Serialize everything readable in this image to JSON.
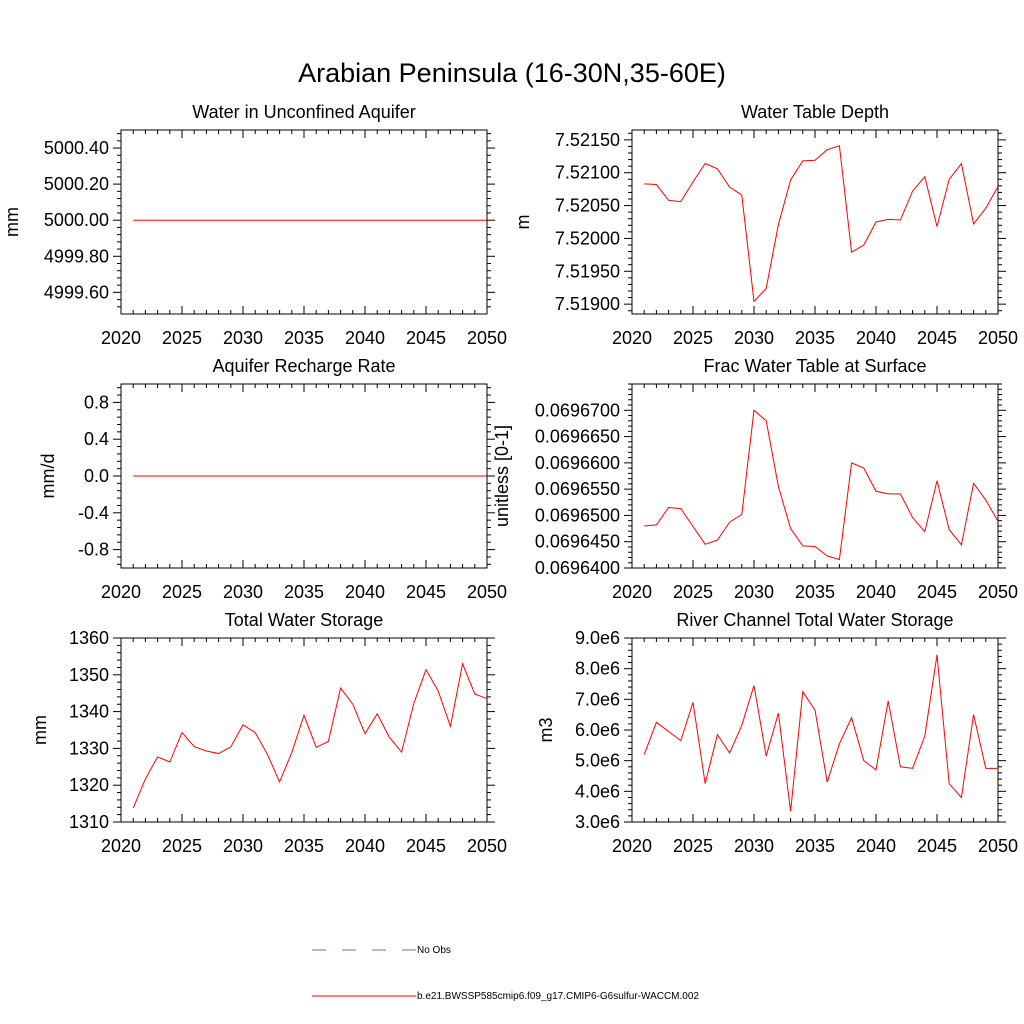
{
  "page": {
    "title": "Arabian Peninsula (16-30N,35-60E)"
  },
  "legend": {
    "entries": [
      {
        "label": "No Obs",
        "color": "#6b6bb5",
        "style": "dashed"
      },
      {
        "label": "b.e21.BWSSP585cmip6.f09_g17.CMIP6-G6sulfur-WACCM.002",
        "color": "#ff0000",
        "style": "solid"
      }
    ]
  },
  "chart_data": [
    {
      "type": "line",
      "title": "Water in Unconfined Aquifer",
      "ylabel": "mm",
      "xlim": [
        2020,
        2050
      ],
      "ylim": [
        4999.48,
        5000.5
      ],
      "xticks": [
        2020,
        2025,
        2030,
        2035,
        2040,
        2045,
        2050
      ],
      "yticks": [
        4999.6,
        4999.8,
        5000.0,
        5000.2,
        5000.4
      ],
      "ytick_labels": [
        "4999.60",
        "4999.80",
        "5000.00",
        "5000.20",
        "5000.40"
      ],
      "series": [
        {
          "color": "#ff0000",
          "x": [
            2021,
            2022,
            2023,
            2024,
            2025,
            2026,
            2027,
            2028,
            2029,
            2030,
            2031,
            2032,
            2033,
            2034,
            2035,
            2036,
            2037,
            2038,
            2039,
            2040,
            2041,
            2042,
            2043,
            2044,
            2045,
            2046,
            2047,
            2048,
            2049,
            2050
          ],
          "y": [
            5000,
            5000,
            5000,
            5000,
            5000,
            5000,
            5000,
            5000,
            5000,
            5000,
            5000,
            5000,
            5000,
            5000,
            5000,
            5000,
            5000,
            5000,
            5000,
            5000,
            5000,
            5000,
            5000,
            5000,
            5000,
            5000,
            5000,
            5000,
            5000,
            5000
          ]
        }
      ]
    },
    {
      "type": "line",
      "title": "Water Table Depth",
      "ylabel": "m",
      "xlim": [
        2020,
        2050
      ],
      "ylim": [
        7.51885,
        7.52165
      ],
      "xticks": [
        2020,
        2025,
        2030,
        2035,
        2040,
        2045,
        2050
      ],
      "yticks": [
        7.519,
        7.5195,
        7.52,
        7.5205,
        7.521,
        7.5215
      ],
      "ytick_labels": [
        "7.51900",
        "7.51950",
        "7.52000",
        "7.52050",
        "7.52100",
        "7.52150"
      ],
      "series": [
        {
          "color": "#ff0000",
          "x": [
            2021,
            2022,
            2023,
            2024,
            2025,
            2026,
            2027,
            2028,
            2029,
            2030,
            2031,
            2032,
            2033,
            2034,
            2035,
            2036,
            2037,
            2038,
            2039,
            2040,
            2041,
            2042,
            2043,
            2044,
            2045,
            2046,
            2047,
            2048,
            2049,
            2050
          ],
          "y": [
            7.52083,
            7.52082,
            7.52058,
            7.52056,
            7.52086,
            7.52114,
            7.52106,
            7.52078,
            7.52066,
            7.51904,
            7.51924,
            7.52021,
            7.52089,
            7.52118,
            7.52119,
            7.52135,
            7.52141,
            7.51979,
            7.5199,
            7.52025,
            7.52029,
            7.52028,
            7.52072,
            7.52094,
            7.52018,
            7.5209,
            7.52114,
            7.52022,
            7.52046,
            7.52079
          ]
        }
      ]
    },
    {
      "type": "line",
      "title": "Aquifer Recharge Rate",
      "ylabel": "mm/d",
      "xlim": [
        2020,
        2050
      ],
      "ylim": [
        -1.0,
        1.0
      ],
      "xticks": [
        2020,
        2025,
        2030,
        2035,
        2040,
        2045,
        2050
      ],
      "yticks": [
        -0.8,
        -0.4,
        0.0,
        0.4,
        0.8
      ],
      "ytick_labels": [
        "-0.8",
        "-0.4",
        "0.0",
        "0.4",
        "0.8"
      ],
      "series": [
        {
          "color": "#ff0000",
          "x": [
            2021,
            2022,
            2023,
            2024,
            2025,
            2026,
            2027,
            2028,
            2029,
            2030,
            2031,
            2032,
            2033,
            2034,
            2035,
            2036,
            2037,
            2038,
            2039,
            2040,
            2041,
            2042,
            2043,
            2044,
            2045,
            2046,
            2047,
            2048,
            2049,
            2050
          ],
          "y": [
            0,
            0,
            0,
            0,
            0,
            0,
            0,
            0,
            0,
            0,
            0,
            0,
            0,
            0,
            0,
            0,
            0,
            0,
            0,
            0,
            0,
            0,
            0,
            0,
            0,
            0,
            0,
            0,
            0,
            0
          ]
        }
      ]
    },
    {
      "type": "line",
      "title": "Frac Water Table at Surface",
      "ylabel": "unitless [0-1]",
      "xlim": [
        2020,
        2050
      ],
      "ylim": [
        0.06964,
        0.069675
      ],
      "xticks": [
        2020,
        2025,
        2030,
        2035,
        2040,
        2045,
        2050
      ],
      "yticks": [
        0.06964,
        0.069645,
        0.06965,
        0.069655,
        0.06966,
        0.069665,
        0.06967
      ],
      "ytick_labels": [
        "0.0696400",
        "0.0696450",
        "0.0696500",
        "0.0696550",
        "0.0696600",
        "0.0696650",
        "0.0696700"
      ],
      "series": [
        {
          "color": "#ff0000",
          "x": [
            2021,
            2022,
            2023,
            2024,
            2025,
            2026,
            2027,
            2028,
            2029,
            2030,
            2031,
            2032,
            2033,
            2034,
            2035,
            2036,
            2037,
            2038,
            2039,
            2040,
            2041,
            2042,
            2043,
            2044,
            2045,
            2046,
            2047,
            2048,
            2049,
            2050
          ],
          "y": [
            0.069648,
            0.0696482,
            0.0696515,
            0.0696513,
            0.0696479,
            0.0696445,
            0.0696453,
            0.0696487,
            0.0696502,
            0.06967,
            0.069668,
            0.0696555,
            0.0696475,
            0.0696442,
            0.0696441,
            0.0696423,
            0.0696416,
            0.06966,
            0.069659,
            0.0696546,
            0.0696541,
            0.0696541,
            0.0696496,
            0.0696469,
            0.0696566,
            0.0696473,
            0.0696444,
            0.0696561,
            0.0696529,
            0.0696489
          ]
        }
      ]
    },
    {
      "type": "line",
      "title": "Total Water Storage",
      "ylabel": "mm",
      "xlim": [
        2020,
        2050
      ],
      "ylim": [
        1310,
        1360
      ],
      "xticks": [
        2020,
        2025,
        2030,
        2035,
        2040,
        2045,
        2050
      ],
      "yticks": [
        1310,
        1320,
        1330,
        1340,
        1350,
        1360
      ],
      "ytick_labels": [
        "1310",
        "1320",
        "1330",
        "1340",
        "1350",
        "1360"
      ],
      "series": [
        {
          "color": "#ff0000",
          "x": [
            2021,
            2022,
            2023,
            2024,
            2025,
            2026,
            2027,
            2028,
            2029,
            2030,
            2031,
            2032,
            2033,
            2034,
            2035,
            2036,
            2037,
            2038,
            2039,
            2040,
            2041,
            2042,
            2043,
            2044,
            2045,
            2046,
            2047,
            2048,
            2049,
            2050
          ],
          "y": [
            1313.8,
            1321.7,
            1327.7,
            1326.3,
            1334.3,
            1330.5,
            1329.3,
            1328.6,
            1330.4,
            1336.4,
            1334.3,
            1328.4,
            1320.9,
            1328.9,
            1339.0,
            1330.3,
            1331.9,
            1346.4,
            1342.0,
            1334.0,
            1339.4,
            1333.0,
            1329.0,
            1342.2,
            1351.4,
            1345.6,
            1336.0,
            1353.0,
            1344.8,
            1343.5
          ]
        }
      ]
    },
    {
      "type": "line",
      "title": "River Channel Total Water Storage",
      "ylabel": "m3",
      "xlim": [
        2020,
        2050
      ],
      "ylim": [
        3000000,
        9000000
      ],
      "xticks": [
        2020,
        2025,
        2030,
        2035,
        2040,
        2045,
        2050
      ],
      "yticks": [
        3000000,
        4000000,
        5000000,
        6000000,
        7000000,
        8000000,
        9000000
      ],
      "ytick_labels": [
        "3.0e6",
        "4.0e6",
        "5.0e6",
        "6.0e6",
        "7.0e6",
        "8.0e6",
        "9.0e6"
      ],
      "series": [
        {
          "color": "#ff0000",
          "x": [
            2021,
            2022,
            2023,
            2024,
            2025,
            2026,
            2027,
            2028,
            2029,
            2030,
            2031,
            2032,
            2033,
            2034,
            2035,
            2036,
            2037,
            2038,
            2039,
            2040,
            2041,
            2042,
            2043,
            2044,
            2045,
            2046,
            2047,
            2048,
            2049,
            2050
          ],
          "y": [
            5200000,
            6250000,
            5950000,
            5650000,
            6900000,
            4250000,
            5850000,
            5250000,
            6150000,
            7450000,
            5150000,
            6550000,
            3350000,
            7250000,
            6650000,
            4300000,
            5550000,
            6400000,
            5000000,
            4700000,
            6950000,
            4800000,
            4750000,
            5800000,
            8450000,
            4250000,
            3800000,
            6500000,
            4750000,
            4750000
          ]
        }
      ]
    }
  ]
}
